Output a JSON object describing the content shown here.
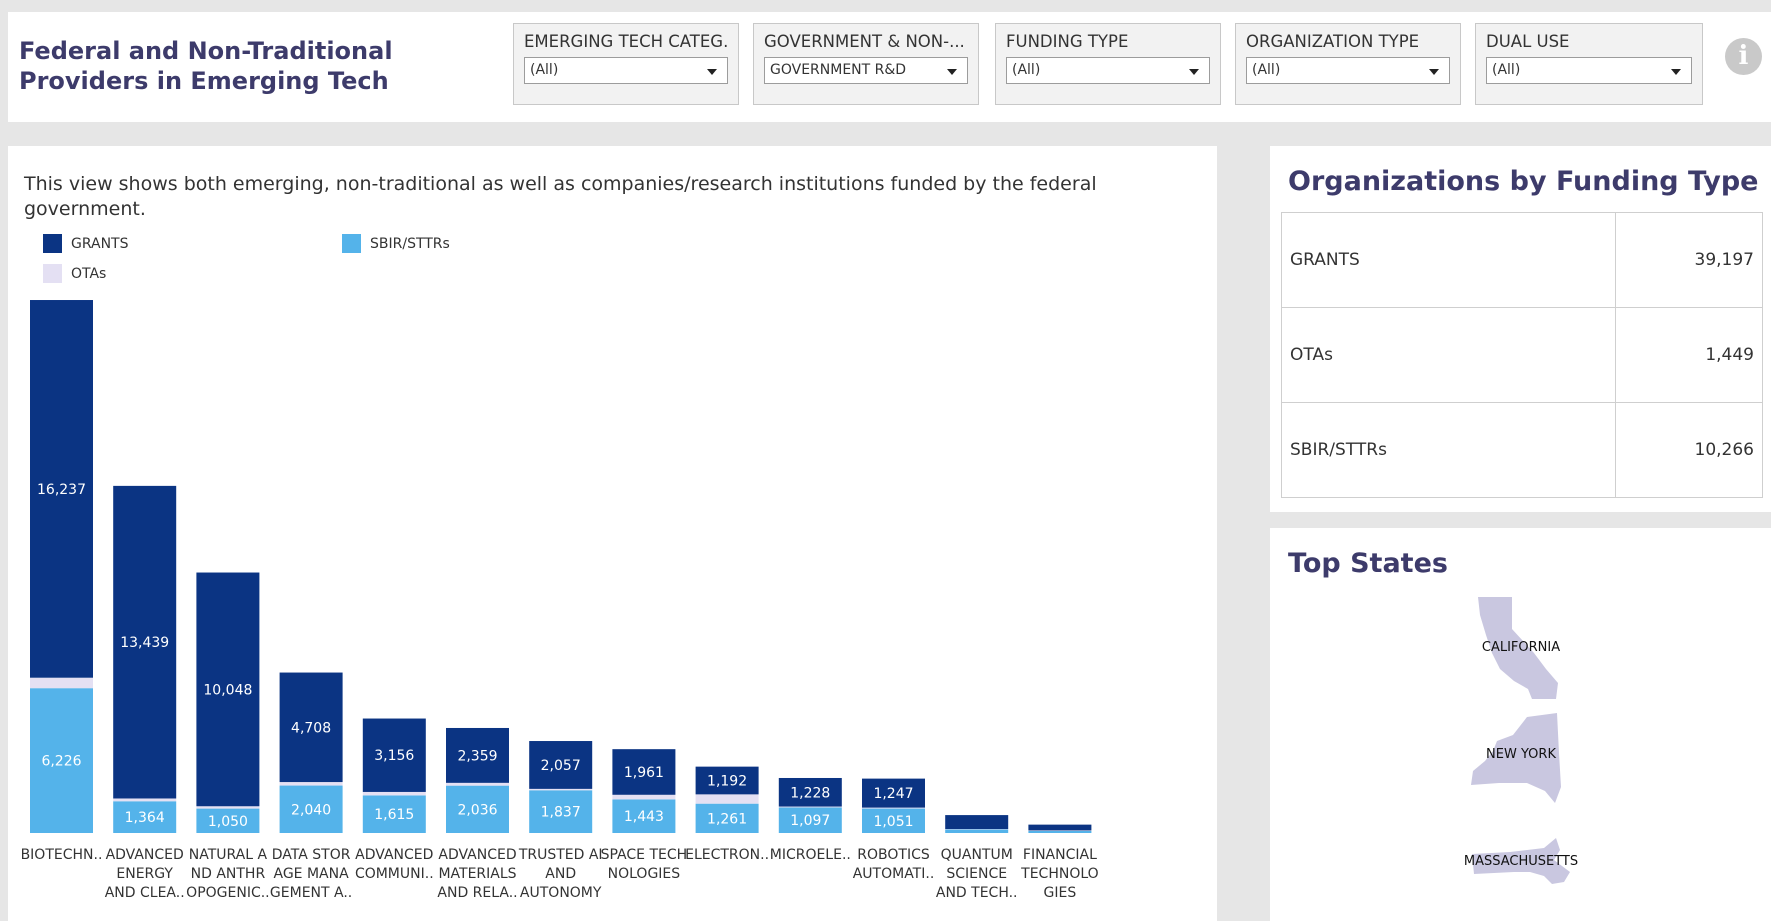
{
  "header": {
    "title": "Federal and Non-Traditional Providers in Emerging Tech",
    "filters": [
      {
        "label": "EMERGING TECH CATEG...",
        "value": "(All)"
      },
      {
        "label": "GOVERNMENT & NON-...",
        "value": "GOVERNMENT R&D"
      },
      {
        "label": "FUNDING TYPE",
        "value": "(All)"
      },
      {
        "label": "ORGANIZATION TYPE",
        "value": "(All)"
      },
      {
        "label": "DUAL USE",
        "value": "(All)"
      }
    ],
    "info_icon": "info-icon"
  },
  "chart_panel": {
    "description": "This view shows both emerging, non-traditional as well as companies/research institutions funded by the federal government."
  },
  "colors": {
    "grants": "#0b3483",
    "sbir": "#54b3ea",
    "otas": "#e4e0f3",
    "title": "#3d3b6b",
    "state_fill": "#c9c7e0"
  },
  "chart_data": {
    "type": "bar",
    "stacked": true,
    "legend": [
      "GRANTS",
      "SBIR/STTRs",
      "OTAs"
    ],
    "legend_position": "top-left",
    "categories": [
      [
        "BIOTECHN.."
      ],
      [
        "ADVANCED",
        "ENERGY",
        "AND CLEA.."
      ],
      [
        "NATURAL A",
        "ND ANTHR",
        "OPOGENIC.."
      ],
      [
        "DATA STOR",
        "AGE MANA",
        "GEMENT A.."
      ],
      [
        "ADVANCED",
        "COMMUNI.."
      ],
      [
        "ADVANCED",
        "MATERIALS",
        "AND RELA.."
      ],
      [
        "TRUSTED AI",
        "AND",
        "AUTONOMY"
      ],
      [
        "SPACE TECH",
        "NOLOGIES"
      ],
      [
        "ELECTRON.."
      ],
      [
        "MICROELE.."
      ],
      [
        "ROBOTICS",
        "AUTOMATI.."
      ],
      [
        "QUANTUM",
        "SCIENCE",
        "AND TECH.."
      ],
      [
        "FINANCIAL",
        "TECHNOLO",
        "GIES"
      ]
    ],
    "series": [
      {
        "name": "SBIR/STTRs",
        "values": [
          6226,
          1364,
          1050,
          2040,
          1615,
          2036,
          1837,
          1443,
          1261,
          1097,
          1051,
          150,
          90
        ],
        "labels": [
          "6,226",
          "1,364",
          "1,050",
          "2,040",
          "1,615",
          "2,036",
          "1,837",
          "1,443",
          "1,261",
          "1,097",
          "1,051",
          "",
          ""
        ]
      },
      {
        "name": "OTAs",
        "values": [
          450,
          120,
          100,
          150,
          150,
          120,
          60,
          200,
          400,
          40,
          40,
          20,
          20
        ],
        "labels": [
          "",
          "",
          "",
          "",
          "",
          "",
          "",
          "",
          "",
          "",
          "",
          "",
          ""
        ]
      },
      {
        "name": "GRANTS",
        "values": [
          16237,
          13439,
          10048,
          4708,
          3156,
          2359,
          2057,
          1961,
          1192,
          1228,
          1247,
          600,
          250
        ],
        "labels": [
          "16,237",
          "13,439",
          "10,048",
          "4,708",
          "3,156",
          "2,359",
          "2,057",
          "1,961",
          "1,192",
          "1,228",
          "1,247",
          "",
          ""
        ]
      }
    ],
    "ylim": [
      0,
      23000
    ],
    "grid": false
  },
  "funding_table": {
    "title": "Organizations by Funding Type",
    "rows": [
      {
        "label": "GRANTS",
        "value": "39,197"
      },
      {
        "label": "OTAs",
        "value": "1,449"
      },
      {
        "label": "SBIR/STTRs",
        "value": "10,266"
      }
    ]
  },
  "top_states": {
    "title": "Top States",
    "states": [
      {
        "name": "CALIFORNIA",
        "icon": "california-shape-icon"
      },
      {
        "name": "NEW YORK",
        "icon": "new-york-shape-icon"
      },
      {
        "name": "MASSACHUSETTS",
        "icon": "massachusetts-shape-icon"
      }
    ]
  }
}
